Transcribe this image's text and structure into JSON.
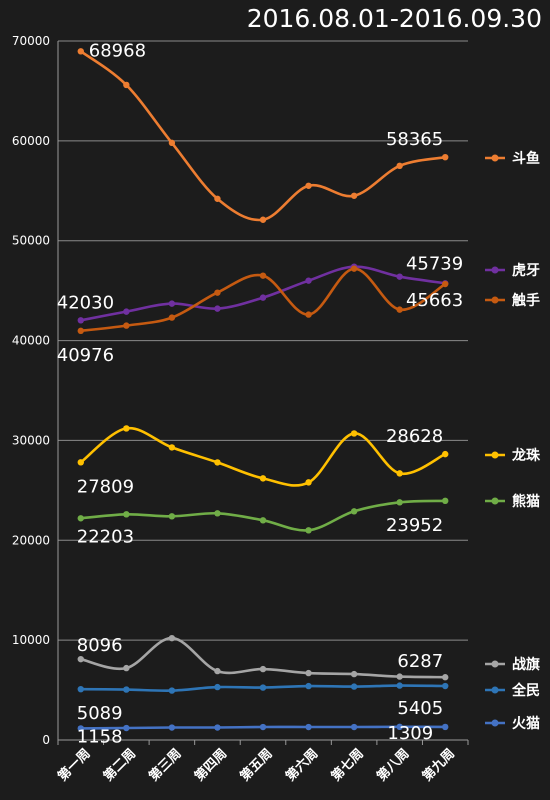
{
  "chart_data": {
    "type": "line",
    "title": "2016.08.01-2016.09.30",
    "xlabel": "",
    "ylabel": "",
    "ylim": [
      0,
      70000
    ],
    "yticks": [
      0,
      10000,
      20000,
      30000,
      40000,
      50000,
      60000,
      70000
    ],
    "grid": true,
    "legend_position": "right",
    "categories": [
      "第一周",
      "第二周",
      "第三周",
      "第四周",
      "第五周",
      "第六周",
      "第七周",
      "第八周",
      "第九周"
    ],
    "series": [
      {
        "name": "斗鱼",
        "color": "#ed7d31",
        "values": [
          68968,
          65600,
          59800,
          54200,
          52100,
          55500,
          54500,
          57500,
          58365
        ]
      },
      {
        "name": "虎牙",
        "color": "#7030a0",
        "values": [
          42030,
          42900,
          43700,
          43200,
          44300,
          46000,
          47400,
          46400,
          45739
        ]
      },
      {
        "name": "触手",
        "color": "#c55a11",
        "values": [
          40976,
          41500,
          42300,
          44800,
          46500,
          42600,
          47200,
          43100,
          45663
        ]
      },
      {
        "name": "龙珠",
        "color": "#ffc000",
        "values": [
          27809,
          31200,
          29300,
          27800,
          26200,
          25800,
          30700,
          26700,
          28628
        ]
      },
      {
        "name": "熊猫",
        "color": "#70ad47",
        "values": [
          22203,
          22600,
          22400,
          22700,
          22000,
          21000,
          22900,
          23800,
          23952
        ]
      },
      {
        "name": "战旗",
        "color": "#a5a5a5",
        "values": [
          8096,
          7200,
          10200,
          6900,
          7100,
          6700,
          6600,
          6350,
          6287
        ]
      },
      {
        "name": "全民",
        "color": "#2e75b6",
        "values": [
          5089,
          5050,
          4950,
          5300,
          5250,
          5400,
          5350,
          5450,
          5405
        ]
      },
      {
        "name": "火猫",
        "color": "#4472c4",
        "values": [
          1158,
          1200,
          1250,
          1250,
          1300,
          1300,
          1300,
          1320,
          1309
        ]
      }
    ],
    "annotations": [
      {
        "text": "68968",
        "series": 0,
        "index": 0
      },
      {
        "text": "58365",
        "series": 0,
        "index": 8
      },
      {
        "text": "42030",
        "series": 1,
        "index": 0
      },
      {
        "text": "45739",
        "series": 1,
        "index": 8
      },
      {
        "text": "40976",
        "series": 2,
        "index": 0
      },
      {
        "text": "45663",
        "series": 2,
        "index": 8
      },
      {
        "text": "27809",
        "series": 3,
        "index": 0
      },
      {
        "text": "28628",
        "series": 3,
        "index": 8
      },
      {
        "text": "22203",
        "series": 4,
        "index": 0
      },
      {
        "text": "23952",
        "series": 4,
        "index": 8
      },
      {
        "text": "8096",
        "series": 5,
        "index": 0
      },
      {
        "text": "6287",
        "series": 5,
        "index": 8
      },
      {
        "text": "5089",
        "series": 6,
        "index": 0
      },
      {
        "text": "5405",
        "series": 6,
        "index": 8
      },
      {
        "text": "1158",
        "series": 7,
        "index": 0
      },
      {
        "text": "1309",
        "series": 7,
        "index": 8
      }
    ]
  }
}
